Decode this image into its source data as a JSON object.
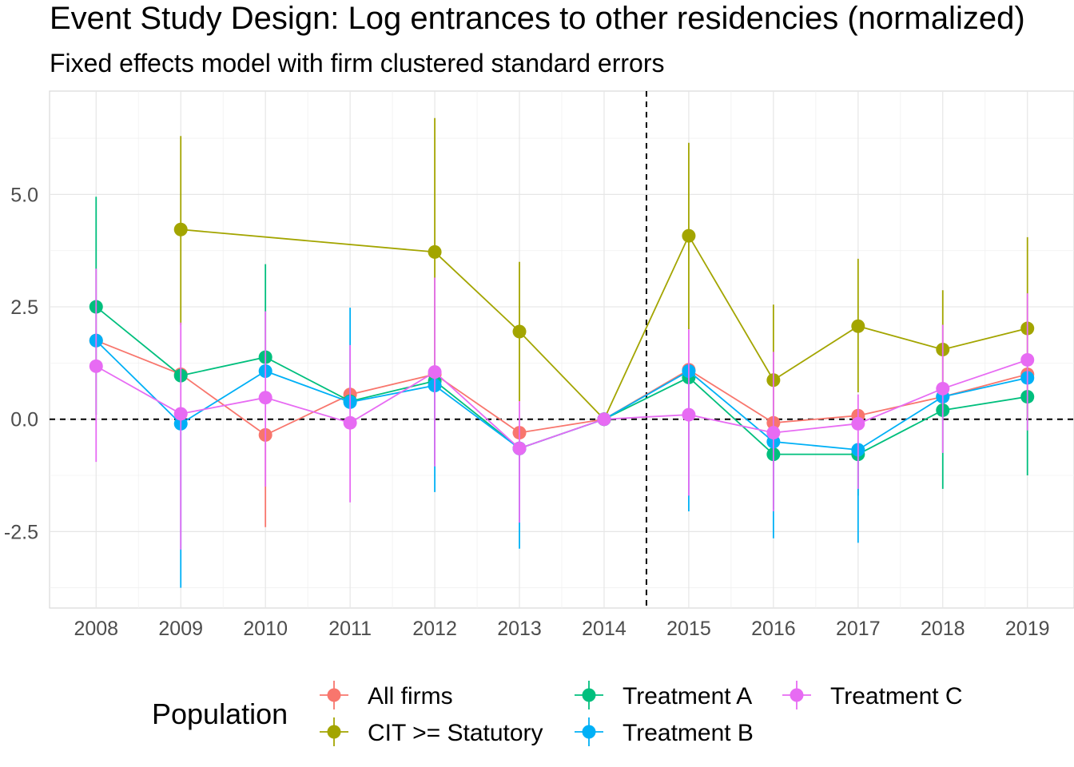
{
  "chart_data": {
    "type": "line",
    "title": "Event Study Design: Log entrances to other residencies (normalized)",
    "subtitle": "Fixed effects model with firm clustered standard errors",
    "xlabel": "",
    "ylabel": "",
    "x": [
      2008,
      2009,
      2010,
      2011,
      2012,
      2013,
      2014,
      2015,
      2016,
      2017,
      2018,
      2019
    ],
    "x_tick_labels": [
      "2008",
      "2009",
      "2010",
      "2011",
      "2012",
      "2013",
      "2014",
      "2015",
      "2016",
      "2017",
      "2018",
      "2019"
    ],
    "y_ticks": [
      -2.5,
      0,
      2.5,
      5
    ],
    "y_tick_labels": [
      "-2.5",
      "0.0",
      "2.5",
      "5.0"
    ],
    "ylim": [
      -4.2,
      7.3
    ],
    "reference_lines": {
      "horizontal_y": 0,
      "vertical_x": 2014.5,
      "style": "dashed"
    },
    "grid": true,
    "legend": {
      "title": "Population",
      "position": "bottom"
    },
    "series": [
      {
        "name": "All firms",
        "color": "#F8766D",
        "x": [
          2008,
          2009,
          2010,
          2011,
          2012,
          2013,
          2014,
          2015,
          2016,
          2017,
          2018,
          2019
        ],
        "values": [
          1.75,
          1.0,
          -0.35,
          0.55,
          1.0,
          -0.3,
          0.0,
          1.1,
          -0.08,
          0.08,
          0.5,
          1.0
        ],
        "lower": [
          null,
          null,
          -2.4,
          null,
          null,
          null,
          0.0,
          null,
          null,
          null,
          null,
          null
        ],
        "upper": [
          null,
          null,
          null,
          null,
          null,
          null,
          0.0,
          null,
          null,
          null,
          null,
          null
        ]
      },
      {
        "name": "CIT >= Statutory",
        "color": "#A3A500",
        "x": [
          2009,
          2012,
          2013,
          2014,
          2015,
          2016,
          2017,
          2018,
          2019
        ],
        "values": [
          4.22,
          3.72,
          1.95,
          0.0,
          4.08,
          0.87,
          2.07,
          1.55,
          2.02
        ],
        "lower": [
          2.1,
          0.8,
          0.4,
          0.0,
          2.0,
          -0.8,
          0.6,
          0.2,
          0.0
        ],
        "upper": [
          6.3,
          6.7,
          3.5,
          0.0,
          6.15,
          2.55,
          3.57,
          2.87,
          4.05
        ]
      },
      {
        "name": "Treatment A",
        "color": "#00BF7D",
        "x": [
          2008,
          2009,
          2010,
          2011,
          2012,
          2013,
          2014,
          2015,
          2016,
          2017,
          2018,
          2019
        ],
        "values": [
          2.5,
          0.97,
          1.38,
          0.4,
          0.85,
          -0.65,
          0.0,
          0.93,
          -0.78,
          -0.78,
          0.2,
          0.5
        ],
        "lower": [
          0.1,
          null,
          null,
          null,
          -1.0,
          null,
          0.0,
          null,
          -2.0,
          -1.7,
          -1.55,
          -1.25
        ],
        "upper": [
          4.95,
          null,
          3.45,
          null,
          null,
          null,
          0.0,
          null,
          null,
          null,
          null,
          null
        ]
      },
      {
        "name": "Treatment B",
        "color": "#00B0F6",
        "x": [
          2008,
          2009,
          2010,
          2011,
          2012,
          2013,
          2014,
          2015,
          2016,
          2017,
          2018,
          2019
        ],
        "values": [
          1.75,
          -0.1,
          1.07,
          0.38,
          0.75,
          -0.65,
          0.0,
          1.07,
          -0.5,
          -0.68,
          0.5,
          0.92
        ],
        "lower": [
          null,
          -3.75,
          null,
          null,
          -1.62,
          -2.88,
          0.0,
          -2.05,
          -2.65,
          -2.75,
          null,
          null
        ],
        "upper": [
          null,
          null,
          null,
          2.48,
          null,
          null,
          0.0,
          null,
          null,
          null,
          null,
          null
        ]
      },
      {
        "name": "Treatment C",
        "color": "#E76BF3",
        "x": [
          2008,
          2009,
          2010,
          2011,
          2012,
          2013,
          2014,
          2015,
          2016,
          2017,
          2018,
          2019
        ],
        "values": [
          1.18,
          0.12,
          0.48,
          -0.08,
          1.05,
          -0.65,
          0.0,
          0.1,
          -0.3,
          -0.1,
          0.68,
          1.32
        ],
        "lower": [
          -0.95,
          -2.9,
          -1.5,
          -1.85,
          -1.05,
          -2.3,
          0.0,
          -1.7,
          -2.05,
          -1.55,
          -0.75,
          -0.25
        ],
        "upper": [
          3.35,
          2.15,
          2.4,
          1.65,
          3.15,
          0.4,
          0.0,
          2.0,
          1.5,
          0.55,
          2.1,
          2.8
        ]
      }
    ]
  }
}
